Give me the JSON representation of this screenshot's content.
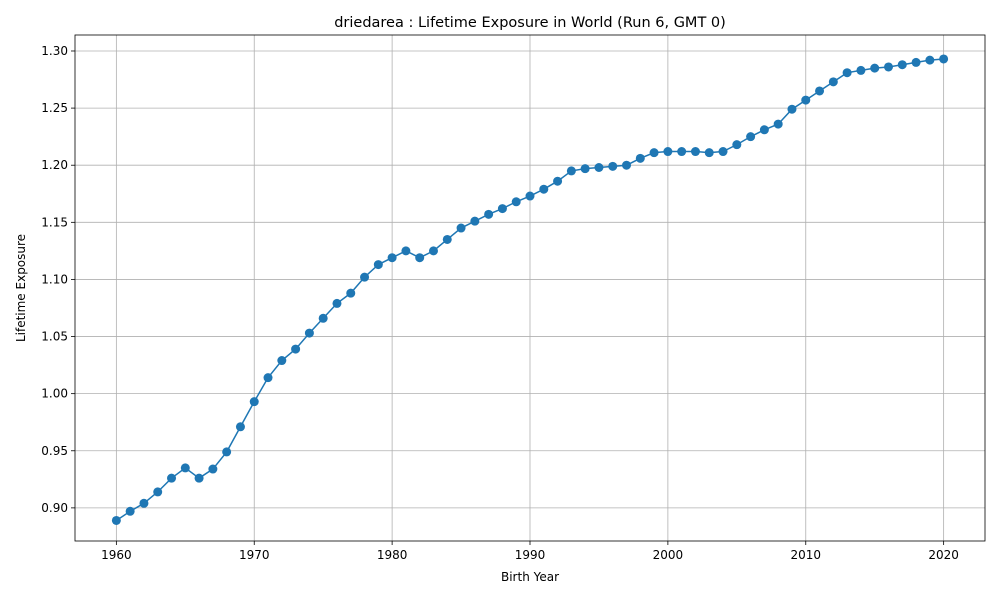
{
  "chart_data": {
    "type": "line",
    "title": "driedarea : Lifetime Exposure in World (Run 6, GMT 0)",
    "xlabel": "Birth Year",
    "ylabel": "Lifetime Exposure",
    "xlim": [
      1957,
      2023
    ],
    "ylim": [
      0.871,
      1.314
    ],
    "xticks": [
      1960,
      1970,
      1980,
      1990,
      2000,
      2010,
      2020
    ],
    "yticks": [
      0.9,
      0.95,
      1.0,
      1.05,
      1.1,
      1.15,
      1.2,
      1.25,
      1.3
    ],
    "xtick_labels": [
      "1960",
      "1970",
      "1980",
      "1990",
      "2000",
      "2010",
      "2020"
    ],
    "ytick_labels": [
      "0.90",
      "0.95",
      "1.00",
      "1.05",
      "1.10",
      "1.15",
      "1.20",
      "1.25",
      "1.30"
    ],
    "grid": true,
    "color": "#1f77b4",
    "series": [
      {
        "x": [
          1960,
          1961,
          1962,
          1963,
          1964,
          1965,
          1966,
          1967,
          1968,
          1969,
          1970,
          1971,
          1972,
          1973,
          1974,
          1975,
          1976,
          1977,
          1978,
          1979,
          1980,
          1981,
          1982,
          1983,
          1984,
          1985,
          1986,
          1987,
          1988,
          1989,
          1990,
          1991,
          1992,
          1993,
          1994,
          1995,
          1996,
          1997,
          1998,
          1999,
          2000,
          2001,
          2002,
          2003,
          2004,
          2005,
          2006,
          2007,
          2008,
          2009,
          2010,
          2011,
          2012,
          2013,
          2014,
          2015,
          2016,
          2017,
          2018,
          2019,
          2020
        ],
        "values": [
          0.889,
          0.897,
          0.904,
          0.914,
          0.926,
          0.935,
          0.926,
          0.934,
          0.949,
          0.971,
          0.993,
          1.014,
          1.029,
          1.039,
          1.053,
          1.066,
          1.079,
          1.088,
          1.102,
          1.113,
          1.119,
          1.125,
          1.119,
          1.125,
          1.135,
          1.145,
          1.151,
          1.157,
          1.162,
          1.168,
          1.173,
          1.179,
          1.186,
          1.195,
          1.197,
          1.198,
          1.199,
          1.2,
          1.206,
          1.211,
          1.212,
          1.212,
          1.212,
          1.211,
          1.212,
          1.218,
          1.225,
          1.231,
          1.236,
          1.249,
          1.257,
          1.265,
          1.273,
          1.281,
          1.283,
          1.285,
          1.286,
          1.288,
          1.29,
          1.292,
          1.293
        ]
      }
    ]
  }
}
